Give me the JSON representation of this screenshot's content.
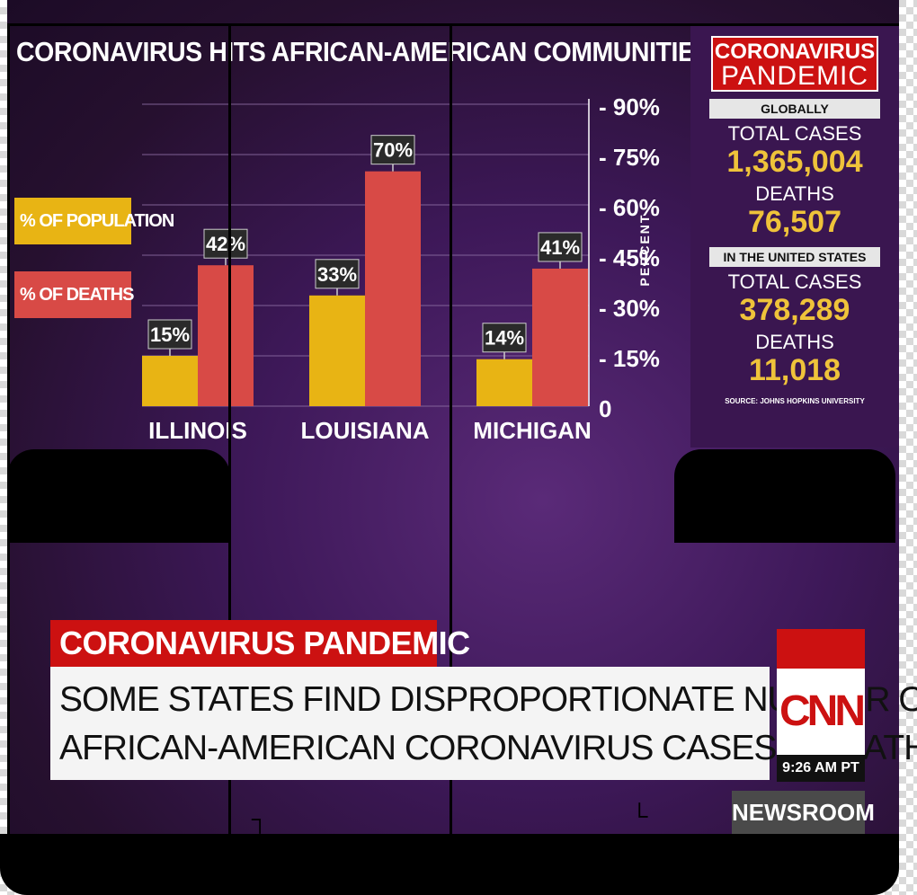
{
  "chart_data": {
    "type": "bar",
    "title": "CORONAVIRUS HITS AFRICAN-AMERICAN COMMUNITIES",
    "categories": [
      "ILLINOIS",
      "LOUISIANA",
      "MICHIGAN"
    ],
    "series": [
      {
        "name": "% OF POPULATION",
        "values": [
          15,
          33,
          14
        ],
        "labels": [
          "15%",
          "33%",
          "14%"
        ],
        "color": "#e8b414"
      },
      {
        "name": "% OF DEATHS",
        "values": [
          42,
          70,
          41
        ],
        "labels": [
          "42%",
          "70%",
          "41%"
        ],
        "color": "#d84a46"
      }
    ],
    "ylabel": "PERCENT",
    "ylim": [
      0,
      90
    ],
    "yticks": [
      0,
      15,
      30,
      45,
      60,
      75,
      90
    ],
    "ytick_labels": [
      "0",
      "15%",
      "30%",
      "45%",
      "60%",
      "75%",
      "90%"
    ],
    "grid": true,
    "legend": "left"
  },
  "side_panel": {
    "header_line1": "CORONAVIRUS",
    "header_line2": "PANDEMIC",
    "global_band": "GLOBALLY",
    "global_cases_label": "TOTAL CASES",
    "global_cases_value": "1,365,004",
    "global_deaths_label": "DEATHS",
    "global_deaths_value": "76,507",
    "us_band": "IN THE UNITED STATES",
    "us_cases_label": "TOTAL CASES",
    "us_cases_value": "378,289",
    "us_deaths_label": "DEATHS",
    "us_deaths_value": "11,018",
    "source": "SOURCE: JOHNS HOPKINS UNIVERSITY"
  },
  "lower_third": {
    "tag": "CORONAVIRUS PANDEMIC",
    "headline_line1": "SOME STATES FIND DISPROPORTIONATE NUMBER OF",
    "headline_line2": "AFRICAN-AMERICAN CORONAVIRUS CASES & DEATHS"
  },
  "network": {
    "logo": "CNN",
    "time": "9:26 AM PT",
    "show": "NEWSROOM"
  },
  "colors": {
    "background": "#3d1858",
    "accent_red": "#cc1111",
    "value_gold": "#efc33a"
  }
}
